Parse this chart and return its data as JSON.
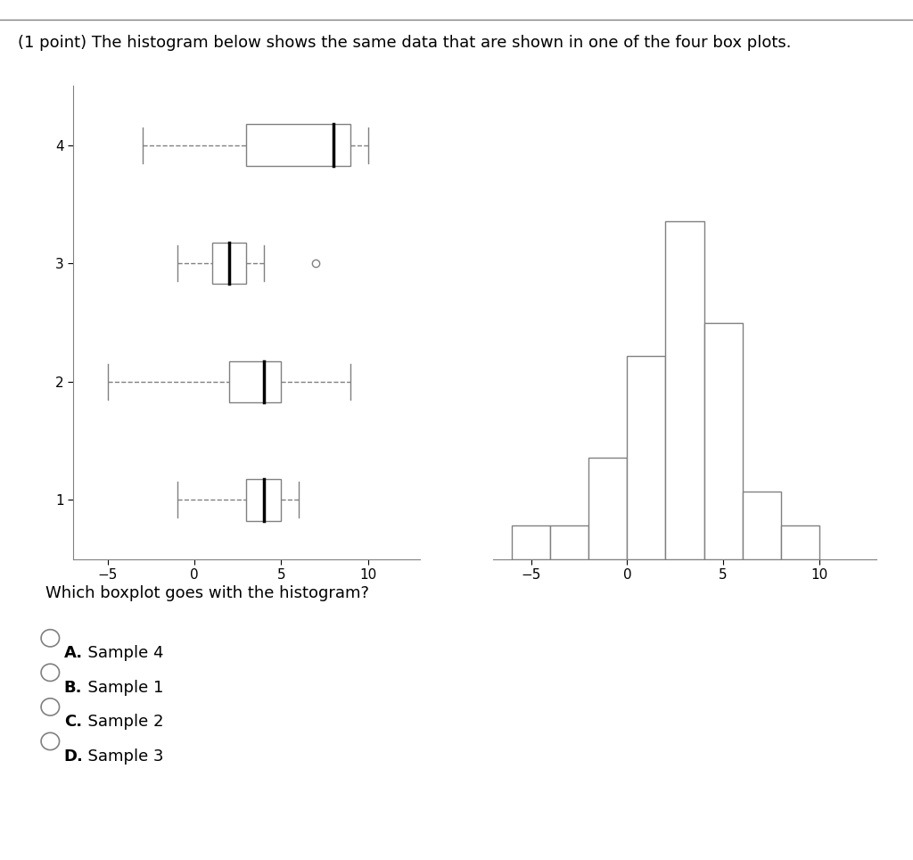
{
  "title": "(1 point) The histogram below shows the same data that are shown in one of the four box plots.",
  "question": "Which boxplot goes with the histogram?",
  "answers": [
    "A. Sample 4",
    "B. Sample 1",
    "C. Sample 2",
    "D. Sample 3"
  ],
  "background_color": "#ffffff",
  "boxplot_panel": {
    "xlim": [
      -7,
      13
    ],
    "ylim": [
      0.5,
      4.5
    ],
    "yticks": [
      1,
      2,
      3,
      4
    ],
    "xticks": [
      -5,
      0,
      5,
      10
    ],
    "boxes": [
      {
        "label": 4,
        "whisker_low": -3,
        "q1": 3,
        "median": 8,
        "q3": 9,
        "whisker_high": 10,
        "outliers": []
      },
      {
        "label": 3,
        "whisker_low": -1,
        "q1": 1,
        "median": 2,
        "q3": 3,
        "whisker_high": 4,
        "outliers": [
          7
        ]
      },
      {
        "label": 2,
        "whisker_low": -5,
        "q1": 2,
        "median": 4,
        "q3": 5,
        "whisker_high": 9,
        "outliers": []
      },
      {
        "label": 1,
        "whisker_low": -1,
        "q1": 3,
        "median": 4,
        "q3": 5,
        "whisker_high": 6,
        "outliers": []
      }
    ]
  },
  "histogram_panel": {
    "xlim": [
      -7,
      13
    ],
    "ylim": [
      0,
      14
    ],
    "xticks": [
      -5,
      0,
      5,
      10
    ],
    "bar_edges": [
      -6,
      -4,
      -2,
      0,
      2,
      4,
      6,
      8,
      10
    ],
    "bar_heights": [
      1,
      1,
      3,
      6,
      10,
      7,
      2,
      1
    ]
  }
}
